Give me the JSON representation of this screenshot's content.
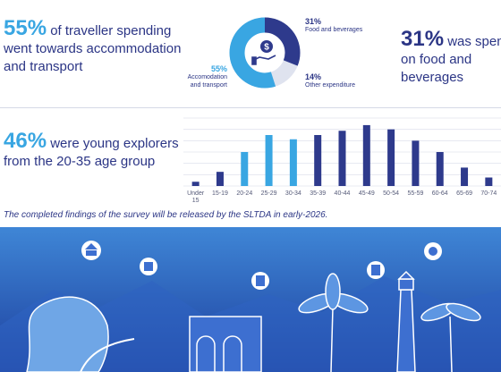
{
  "stats": {
    "accommodation": {
      "pct": "55%",
      "text": " of traveller spending went towards accommodation and transport"
    },
    "food": {
      "pct": "31%",
      "text": " was spent on food and beverages"
    },
    "young": {
      "pct": "46%",
      "text": " were young explorers from the 20-35 age group"
    }
  },
  "donut": {
    "food_pct": "31%",
    "food_label": "Food and beverages",
    "other_pct": "14%",
    "other_label": "Other expenditure",
    "acc_pct": "55%",
    "acc_label": "Accomodation and transport",
    "icon": "money-hand-icon",
    "colors": {
      "accommodation": "#39a6e2",
      "food": "#2e3a8c",
      "other": "#dfe3ef"
    }
  },
  "chart_data": {
    "type": "bar",
    "categories": [
      "Under 15",
      "15-19",
      "20-24",
      "25-29",
      "30-34",
      "35-39",
      "40-44",
      "45-49",
      "50-54",
      "55-59",
      "60-64",
      "65-69",
      "70-74"
    ],
    "values": [
      1.5,
      5,
      12,
      18,
      16.5,
      18,
      19.5,
      21.5,
      20,
      16,
      12,
      6.5,
      3
    ],
    "highlight": [
      "20-24",
      "25-29",
      "30-34"
    ],
    "colors": {
      "default": "#2e3a8c",
      "highlight": "#39a6e2"
    },
    "ylim": [
      0,
      24
    ],
    "grid": true
  },
  "footnote": "The completed findings of the survey will be released by the SLTDA in early-2026."
}
